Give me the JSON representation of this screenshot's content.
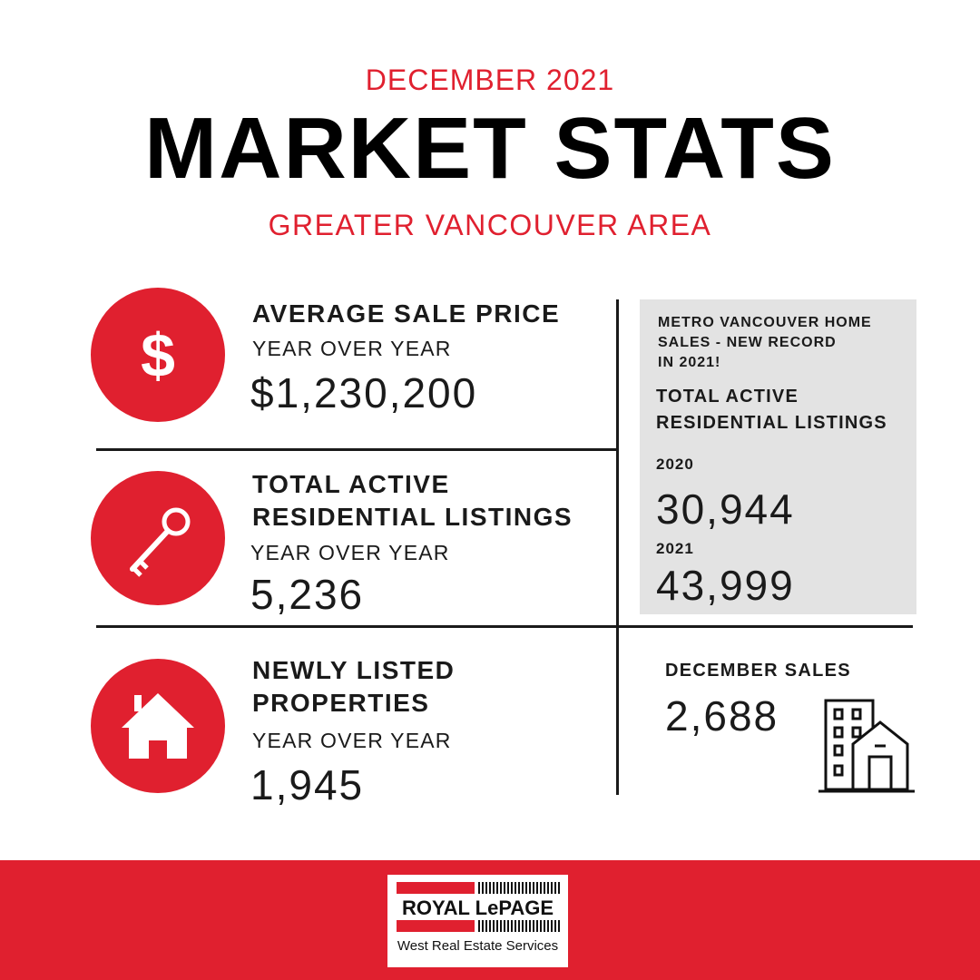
{
  "header": {
    "eyebrow": "DECEMBER 2021",
    "title": "MARKET STATS",
    "subtitle": "GREATER VANCOUVER AREA"
  },
  "stats": [
    {
      "icon": "dollar-icon",
      "title": "AVERAGE SALE PRICE",
      "sub": "YEAR OVER YEAR",
      "value": "$1,230,200"
    },
    {
      "icon": "key-icon",
      "title_line1": "TOTAL ACTIVE",
      "title_line2": "RESIDENTIAL LISTINGS",
      "sub": "YEAR OVER YEAR",
      "value": "5,236"
    },
    {
      "icon": "house-icon",
      "title_line1": "NEWLY LISTED",
      "title_line2": "PROPERTIES",
      "sub": "YEAR OVER YEAR",
      "value": "1,945"
    }
  ],
  "highlight_box": {
    "note_line1": "METRO VANCOUVER HOME",
    "note_line2": "SALES - NEW RECORD",
    "note_line3": "IN 2021!",
    "title_line1": "TOTAL ACTIVE",
    "title_line2": "RESIDENTIAL LISTINGS",
    "year1_label": "2020",
    "year1_value": "30,944",
    "year2_label": "2021",
    "year2_value": "43,999"
  },
  "december_sales": {
    "title": "DECEMBER SALES",
    "value": "2,688",
    "icon": "buildings-icon"
  },
  "footer": {
    "logo_name": "ROYAL LePAGE",
    "logo_tagline": "West Real Estate Services"
  },
  "colors": {
    "accent": "#e0202f",
    "text": "#1a1a1a",
    "box": "#e3e3e3"
  }
}
